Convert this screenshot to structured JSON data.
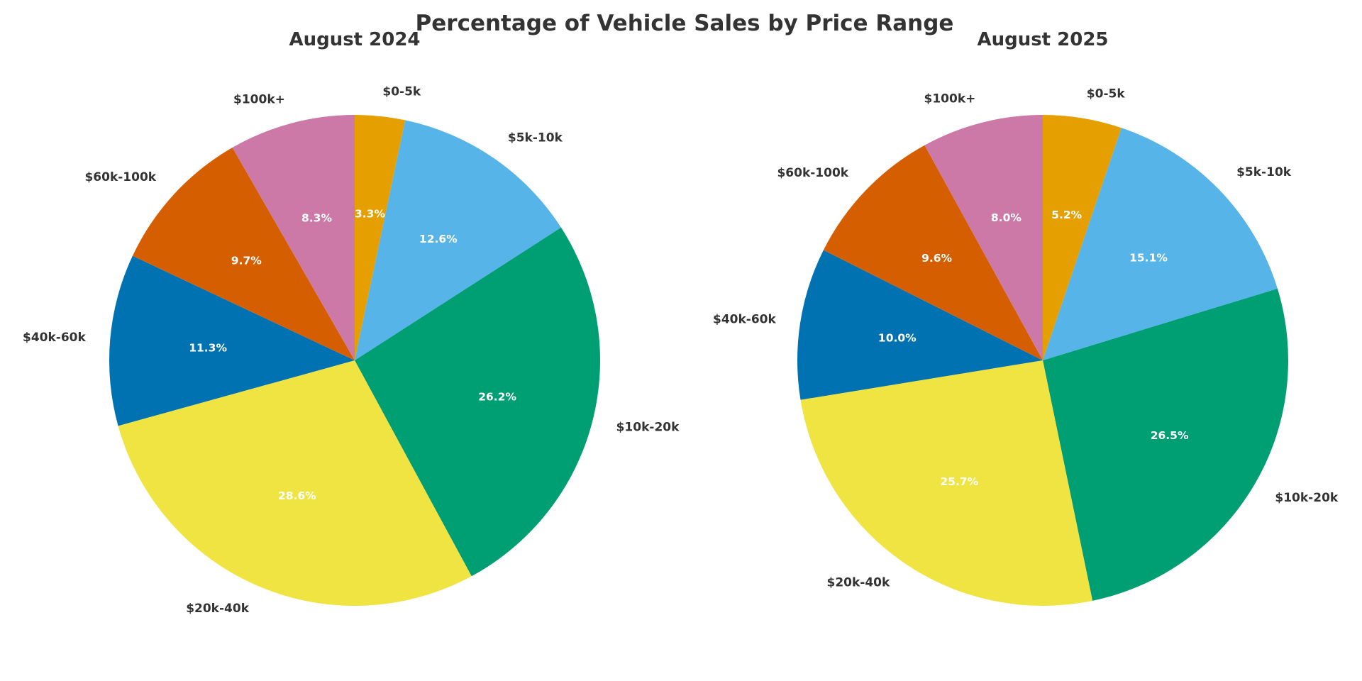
{
  "chart_data": {
    "type": "pie",
    "title": "Percentage of Vehicle Sales by Price Range",
    "categories": [
      "$0-5k",
      "$5k-10k",
      "$10k-20k",
      "$20k-40k",
      "$40k-60k",
      "$60k-100k",
      "$100k+"
    ],
    "colors": [
      "#E69F00",
      "#56B4E9",
      "#009E73",
      "#F0E442",
      "#0072B2",
      "#D55E00",
      "#CC79A7"
    ],
    "start_angle_deg": 90,
    "direction": "clockwise",
    "label_format": "{value}%",
    "pies": [
      {
        "title": "August 2024",
        "values": [
          3.3,
          12.6,
          26.2,
          28.6,
          11.3,
          9.7,
          8.3
        ]
      },
      {
        "title": "August 2025",
        "values": [
          5.2,
          15.1,
          26.5,
          25.7,
          10.0,
          9.6,
          8.0
        ]
      }
    ]
  }
}
